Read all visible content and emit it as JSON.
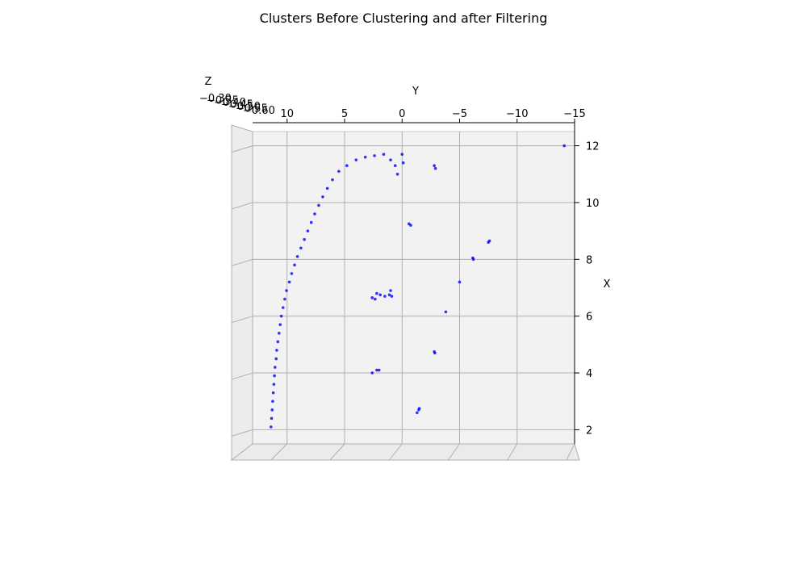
{
  "chart_data": {
    "type": "scatter",
    "title": "Clusters Before Clustering and after Filtering",
    "xlabel": "X",
    "ylabel": "Y",
    "zlabel": "Z",
    "view": "top-down 3D scatter (X vertical, Y horizontal reversed)",
    "x_ticks": [
      "2",
      "4",
      "6",
      "8",
      "10",
      "12"
    ],
    "y_ticks": [
      "10",
      "5",
      "0",
      "−5",
      "−10",
      "−15"
    ],
    "z_ticks": [
      "−0.30",
      "−0.35",
      "−0.40",
      "−0.45",
      "−0.50",
      "−0.55",
      "−0.60"
    ],
    "xlim": [
      1.5,
      12.5
    ],
    "ylim": [
      13,
      -15
    ],
    "point_color": "#0000ff",
    "grid": true,
    "pane_color": "#f2f2f2",
    "series": [
      {
        "name": "",
        "points": [
          {
            "x": 2.1,
            "y": 11.4
          },
          {
            "x": 2.4,
            "y": 11.35
          },
          {
            "x": 2.7,
            "y": 11.3
          },
          {
            "x": 3.0,
            "y": 11.25
          },
          {
            "x": 3.3,
            "y": 11.2
          },
          {
            "x": 3.6,
            "y": 11.15
          },
          {
            "x": 3.9,
            "y": 11.1
          },
          {
            "x": 4.2,
            "y": 11.05
          },
          {
            "x": 4.5,
            "y": 10.95
          },
          {
            "x": 4.8,
            "y": 10.9
          },
          {
            "x": 5.1,
            "y": 10.8
          },
          {
            "x": 5.4,
            "y": 10.7
          },
          {
            "x": 5.7,
            "y": 10.6
          },
          {
            "x": 6.0,
            "y": 10.5
          },
          {
            "x": 6.3,
            "y": 10.35
          },
          {
            "x": 6.6,
            "y": 10.2
          },
          {
            "x": 6.9,
            "y": 10.05
          },
          {
            "x": 7.2,
            "y": 9.8
          },
          {
            "x": 7.5,
            "y": 9.6
          },
          {
            "x": 7.8,
            "y": 9.35
          },
          {
            "x": 8.1,
            "y": 9.1
          },
          {
            "x": 8.4,
            "y": 8.8
          },
          {
            "x": 8.7,
            "y": 8.5
          },
          {
            "x": 9.0,
            "y": 8.2
          },
          {
            "x": 9.3,
            "y": 7.9
          },
          {
            "x": 9.6,
            "y": 7.6
          },
          {
            "x": 9.9,
            "y": 7.25
          },
          {
            "x": 10.2,
            "y": 6.9
          },
          {
            "x": 10.5,
            "y": 6.5
          },
          {
            "x": 10.8,
            "y": 6.05
          },
          {
            "x": 11.1,
            "y": 5.5
          },
          {
            "x": 11.3,
            "y": 4.8
          },
          {
            "x": 11.5,
            "y": 4.0
          },
          {
            "x": 11.6,
            "y": 3.2
          },
          {
            "x": 11.65,
            "y": 2.4
          },
          {
            "x": 11.7,
            "y": 1.6
          },
          {
            "x": 11.5,
            "y": 1.0
          },
          {
            "x": 11.3,
            "y": 0.6
          },
          {
            "x": 11.7,
            "y": 0.0
          },
          {
            "x": 11.4,
            "y": -0.1
          },
          {
            "x": 11.0,
            "y": 0.4
          },
          {
            "x": 11.2,
            "y": -2.9
          },
          {
            "x": 11.3,
            "y": -2.8
          },
          {
            "x": 12.0,
            "y": -14.1
          },
          {
            "x": 9.25,
            "y": -0.6
          },
          {
            "x": 9.2,
            "y": -0.75
          },
          {
            "x": 8.6,
            "y": -7.5
          },
          {
            "x": 8.65,
            "y": -7.6
          },
          {
            "x": 8.0,
            "y": -6.2
          },
          {
            "x": 8.05,
            "y": -6.15
          },
          {
            "x": 7.2,
            "y": -5.0
          },
          {
            "x": 6.8,
            "y": 2.2
          },
          {
            "x": 6.75,
            "y": 1.9
          },
          {
            "x": 6.7,
            "y": 1.5
          },
          {
            "x": 6.65,
            "y": 2.6
          },
          {
            "x": 6.6,
            "y": 2.35
          },
          {
            "x": 6.75,
            "y": 1.1
          },
          {
            "x": 6.7,
            "y": 0.9
          },
          {
            "x": 6.9,
            "y": 1.0
          },
          {
            "x": 6.15,
            "y": -3.8
          },
          {
            "x": 4.75,
            "y": -2.8
          },
          {
            "x": 4.7,
            "y": -2.85
          },
          {
            "x": 4.1,
            "y": 2.0
          },
          {
            "x": 4.1,
            "y": 2.2
          },
          {
            "x": 4.0,
            "y": 2.6
          },
          {
            "x": 2.75,
            "y": -1.5
          },
          {
            "x": 2.7,
            "y": -1.45
          },
          {
            "x": 2.6,
            "y": -1.3
          }
        ]
      }
    ]
  }
}
